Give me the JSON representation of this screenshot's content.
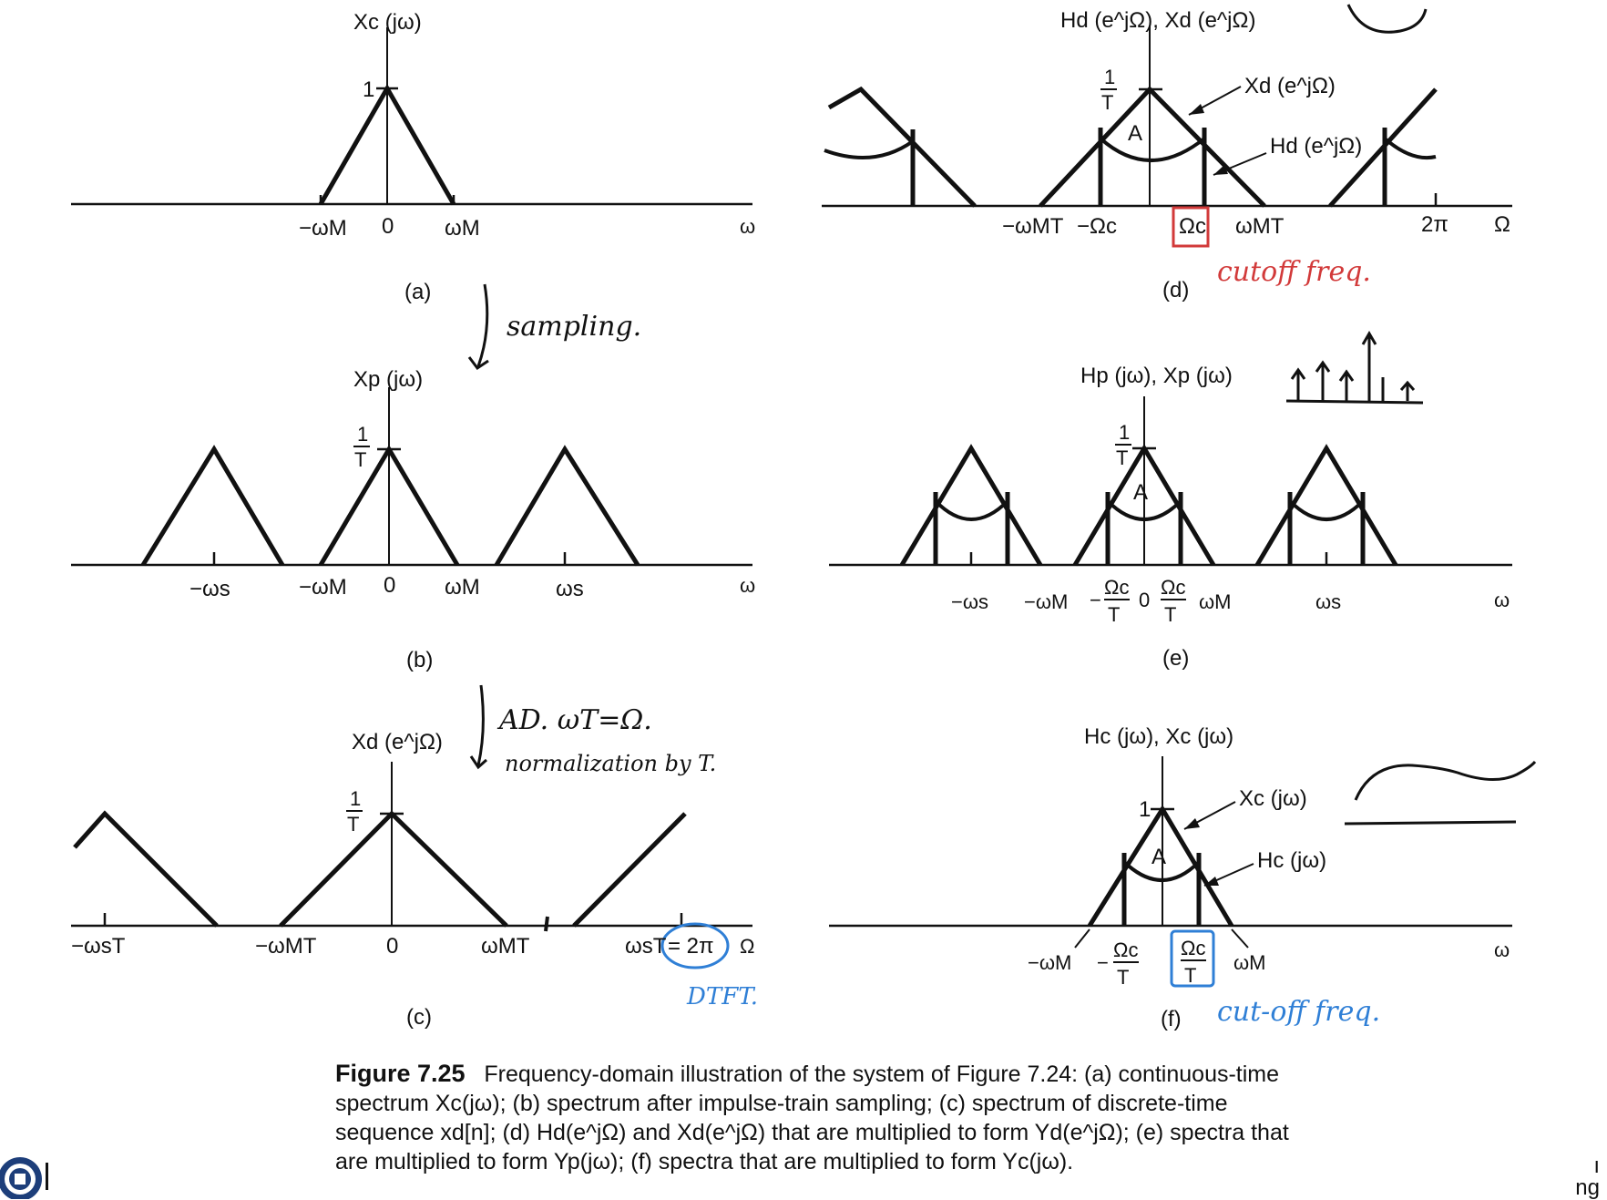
{
  "panels": {
    "a": {
      "tag": "(a)",
      "ylabel": "Xc (jω)",
      "peak": "1",
      "ticks": [
        "−ωM",
        "0",
        "ωM"
      ],
      "axis_var": "ω"
    },
    "b": {
      "tag": "(b)",
      "ylabel": "Xp (jω)",
      "peak_num": "1",
      "peak_den": "T",
      "ticks": [
        "−ωs",
        "−ωM",
        "0",
        "ωM",
        "ωs"
      ],
      "axis_var": "ω"
    },
    "c": {
      "tag": "(c)",
      "ylabel": "Xd (e^jΩ)",
      "peak_num": "1",
      "peak_den": "T",
      "ticks": [
        "−ωsT",
        "−ωMT",
        "0",
        "ωMT",
        "ωsT",
        "= 2π"
      ],
      "axis_var": "Ω"
    },
    "d": {
      "tag": "(d)",
      "ylabel": "Hd (e^jΩ), Xd (e^jΩ)",
      "peak_num": "1",
      "peak_den": "T",
      "area": "A",
      "curve_x": "Xd (e^jΩ)",
      "curve_h": "Hd (e^jΩ)",
      "ticks": [
        "−ωMT",
        "−Ωc",
        "Ωc",
        "ωMT",
        "2π"
      ],
      "axis_var": "Ω"
    },
    "e": {
      "tag": "(e)",
      "ylabel": "Hp (jω), Xp (jω)",
      "peak_num": "1",
      "peak_den": "T",
      "area": "A",
      "ticks": [
        "−ωs",
        "−ωM",
        "−",
        "Ωc",
        "T",
        "0",
        "Ωc",
        "T",
        "ωM",
        "ωs"
      ],
      "axis_var": "ω"
    },
    "f": {
      "tag": "(f)",
      "ylabel": "Hc (jω), Xc (jω)",
      "peak": "1",
      "area": "A",
      "curve_x": "Xc (jω)",
      "curve_h": "Hc (jω)",
      "ticks": [
        "−ωM",
        "−",
        "Ωc",
        "T",
        "Ωc",
        "T",
        "ωM"
      ],
      "axis_var": "ω"
    }
  },
  "annotations": {
    "sampling": "sampling.",
    "ad": "AD.  ωT=Ω.",
    "normalization": "normalization by T.",
    "cutoff_red": "cutoff freq.",
    "dtft": "DTFT.",
    "cutoff_blue": "cut-off freq."
  },
  "caption": {
    "head": "Figure 7.25",
    "text": "Frequency-domain illustration of the system of Figure 7.24: (a) continuous-time spectrum Xc(jω); (b) spectrum after impulse-train sampling; (c) spectrum of discrete-time sequence xd[n]; (d) Hd(e^jΩ) and Xd(e^jΩ) that are multiplied to form Yd(e^jΩ); (e) spectra that are multiplied to form Yp(jω); (f) spectra that are multiplied to form Yc(jω)."
  },
  "footer": {
    "edge_text_1": "ı",
    "edge_text_2": "ng"
  },
  "colors": {
    "ink": "#111111",
    "red_ink": "#d23a3a",
    "blue_ink": "#2f7fd6"
  }
}
